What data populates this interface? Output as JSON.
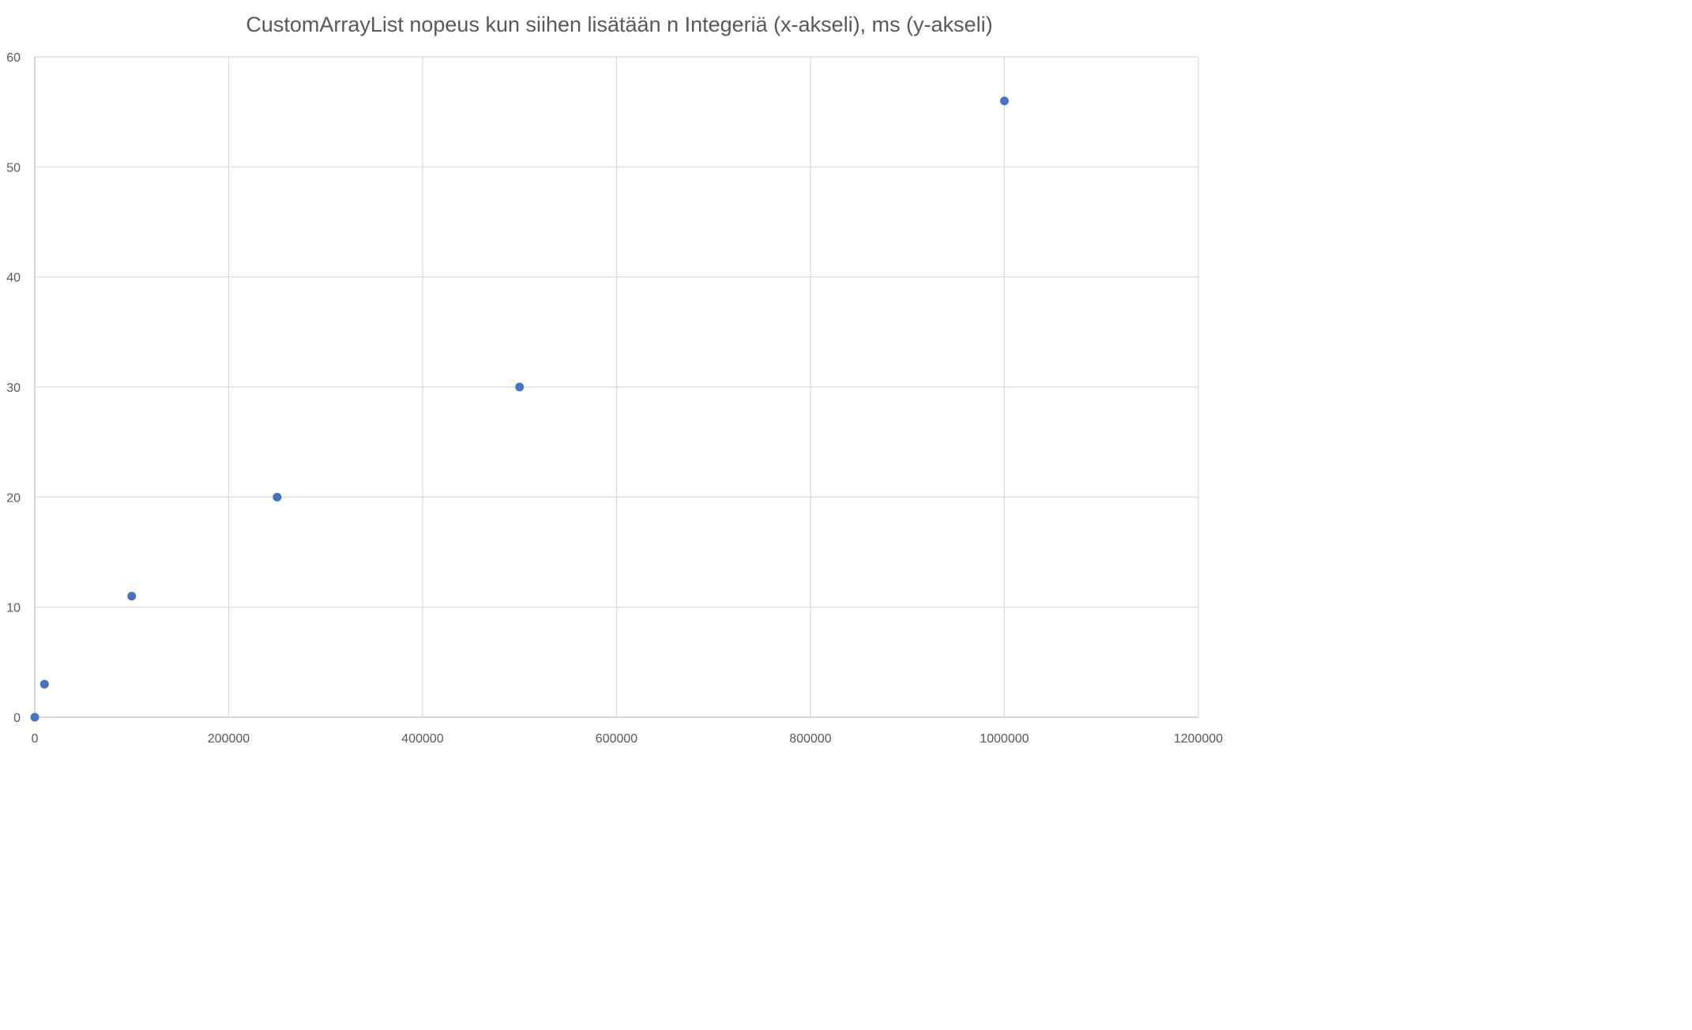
{
  "chart_data": {
    "type": "scatter",
    "title": "CustomArrayList nopeus kun siihen lisätään n Integeriä (x-akseli), ms (y-akseli)",
    "xlabel": "",
    "ylabel": "",
    "xlim": [
      0,
      1200000
    ],
    "ylim": [
      0,
      60
    ],
    "x_ticks": [
      "0",
      "200000",
      "400000",
      "600000",
      "800000",
      "1000000",
      "1200000"
    ],
    "y_ticks": [
      "0",
      "10",
      "20",
      "30",
      "40",
      "50",
      "60"
    ],
    "grid": true,
    "legend": "none",
    "marker_color": "#4472c4",
    "points": [
      {
        "x": 0,
        "y": 0
      },
      {
        "x": 10000,
        "y": 3
      },
      {
        "x": 100000,
        "y": 11
      },
      {
        "x": 250000,
        "y": 20
      },
      {
        "x": 500000,
        "y": 30
      },
      {
        "x": 1000000,
        "y": 56
      }
    ]
  }
}
